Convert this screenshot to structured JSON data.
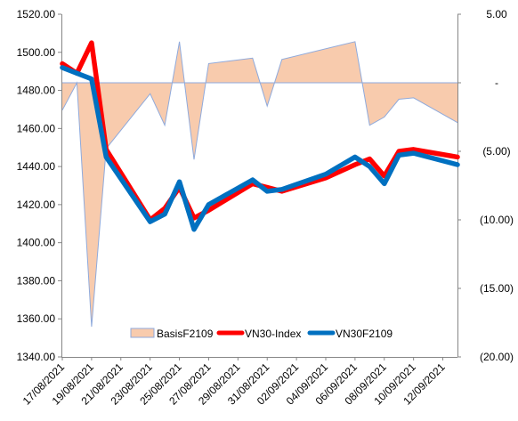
{
  "chart_data": {
    "type": "line",
    "title": "",
    "categories": [
      "17/08/2021",
      "18/08/2021",
      "19/08/2021",
      "20/08/2021",
      "21/08/2021",
      "23/08/2021",
      "24/08/2021",
      "25/08/2021",
      "26/08/2021",
      "27/08/2021",
      "28/08/2021",
      "29/08/2021",
      "30/08/2021",
      "31/08/2021",
      "01/09/2021",
      "02/09/2021",
      "04/09/2021",
      "06/09/2021",
      "07/09/2021",
      "08/09/2021",
      "09/09/2021",
      "10/09/2021",
      "11/09/2021",
      "12/09/2021",
      "13/09/2021"
    ],
    "x_tick_labels": [
      "17/08/2021",
      "19/08/2021",
      "21/08/2021",
      "23/08/2021",
      "25/08/2021",
      "27/08/2021",
      "29/08/2021",
      "31/08/2021",
      "02/09/2021",
      "04/09/2021",
      "06/09/2021",
      "08/09/2021",
      "10/09/2021",
      "12/09/2021"
    ],
    "x_range": [
      "17/08/2021",
      "13/09/2021"
    ],
    "y_left": {
      "range": [
        1340,
        1520
      ],
      "ticks": [
        "1340.00",
        "1360.00",
        "1380.00",
        "1400.00",
        "1420.00",
        "1440.00",
        "1460.00",
        "1480.00",
        "1500.00",
        "1520.00"
      ]
    },
    "y_right": {
      "range": [
        -20,
        5
      ],
      "ticks": [
        "(20.00)",
        "(15.00)",
        "(10.00)",
        "(5.00)",
        "-",
        "5.00"
      ]
    },
    "series": [
      {
        "name": "BasisF2109",
        "kind": "area",
        "axis": "right",
        "color_fill": "#f8cbad",
        "color_line": "#8faadc",
        "points": [
          [
            "17/08/2021",
            -2.0
          ],
          [
            "18/08/2021",
            0.0
          ],
          [
            "19/08/2021",
            -17.8
          ],
          [
            "20/08/2021",
            -4.8
          ],
          [
            "23/08/2021",
            -0.8
          ],
          [
            "24/08/2021",
            -3.1
          ],
          [
            "25/08/2021",
            3.0
          ],
          [
            "26/08/2021",
            -5.6
          ],
          [
            "27/08/2021",
            1.4
          ],
          [
            "30/08/2021",
            1.8
          ],
          [
            "31/08/2021",
            -1.7
          ],
          [
            "01/09/2021",
            1.7
          ],
          [
            "06/09/2021",
            3.0
          ],
          [
            "07/09/2021",
            -3.1
          ],
          [
            "08/09/2021",
            -2.5
          ],
          [
            "09/09/2021",
            -1.2
          ],
          [
            "10/09/2021",
            -1.1
          ],
          [
            "13/09/2021",
            -2.9
          ]
        ]
      },
      {
        "name": "VN30-Index",
        "kind": "line",
        "axis": "left",
        "color": "#ff0000",
        "points": [
          [
            "17/08/2021",
            1494
          ],
          [
            "18/08/2021",
            1489
          ],
          [
            "19/08/2021",
            1505
          ],
          [
            "20/08/2021",
            1449
          ],
          [
            "23/08/2021",
            1412
          ],
          [
            "24/08/2021",
            1418
          ],
          [
            "25/08/2021",
            1429
          ],
          [
            "26/08/2021",
            1413
          ],
          [
            "27/08/2021",
            1417
          ],
          [
            "30/08/2021",
            1431
          ],
          [
            "31/08/2021",
            1429
          ],
          [
            "01/09/2021",
            1427
          ],
          [
            "04/09/2021",
            1434
          ],
          [
            "06/09/2021",
            1441
          ],
          [
            "07/09/2021",
            1444
          ],
          [
            "08/09/2021",
            1435
          ],
          [
            "09/09/2021",
            1448
          ],
          [
            "10/09/2021",
            1449
          ],
          [
            "13/09/2021",
            1445
          ]
        ]
      },
      {
        "name": "VN30F2109",
        "kind": "line",
        "axis": "left",
        "color": "#0070c0",
        "points": [
          [
            "17/08/2021",
            1492
          ],
          [
            "18/08/2021",
            1489
          ],
          [
            "19/08/2021",
            1486
          ],
          [
            "20/08/2021",
            1445
          ],
          [
            "23/08/2021",
            1411
          ],
          [
            "24/08/2021",
            1415
          ],
          [
            "25/08/2021",
            1432
          ],
          [
            "26/08/2021",
            1407
          ],
          [
            "27/08/2021",
            1420
          ],
          [
            "30/08/2021",
            1433
          ],
          [
            "31/08/2021",
            1427
          ],
          [
            "01/09/2021",
            1428
          ],
          [
            "04/09/2021",
            1436
          ],
          [
            "06/09/2021",
            1445
          ],
          [
            "07/09/2021",
            1440
          ],
          [
            "08/09/2021",
            1431
          ],
          [
            "09/09/2021",
            1446
          ],
          [
            "10/09/2021",
            1447
          ],
          [
            "13/09/2021",
            1441
          ]
        ]
      }
    ],
    "legend": {
      "position": "bottom-center",
      "entries": [
        "BasisF2109",
        "VN30-Index",
        "VN30F2109"
      ]
    },
    "grid": false
  }
}
